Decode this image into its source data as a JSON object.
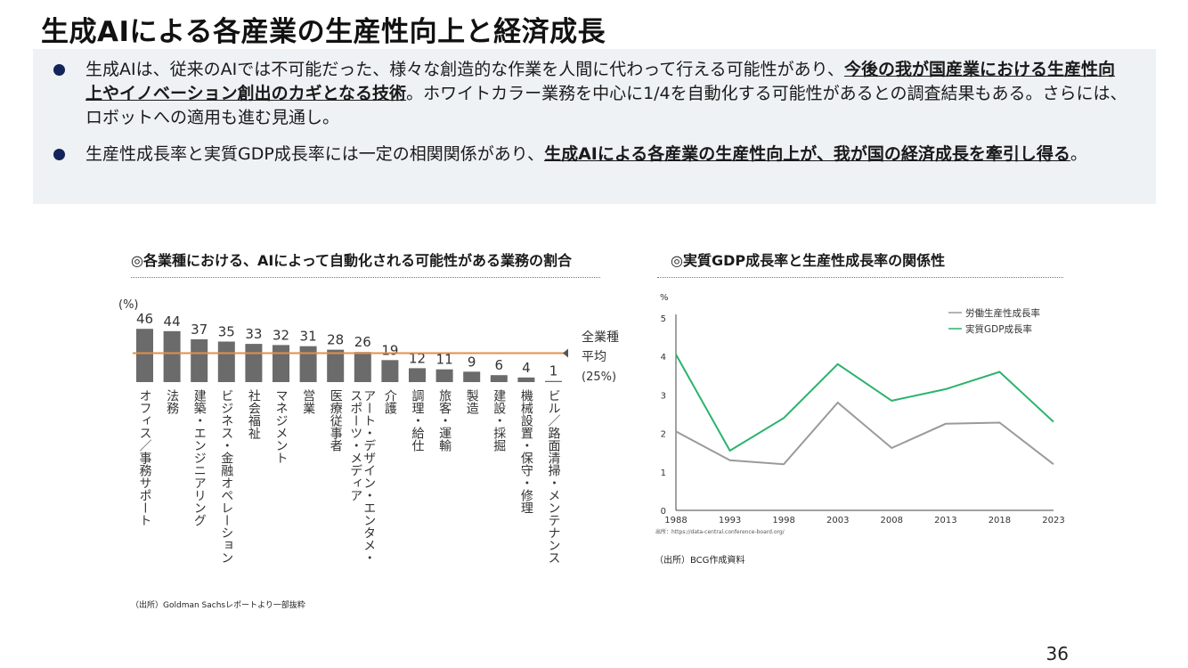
{
  "title": "生成AIによる各産業の生産性向上と経済成長",
  "bullets": [
    {
      "text1": "生成AIは、従来のAIでは不可能だった、様々な創造的な作業を人間に代わって行える可能性があり、",
      "bold": "今後の我が国産業における生産性向上やイノベーション創出のカギとなる技術",
      "text2": "。ホワイトカラー業務を中心に1/4を自動化する可能性があるとの調査結果もある。さらには、ロボットへの適用も進む見通し。"
    },
    {
      "text1": "生産性成長率と実質GDP成長率には一定の相関関係があり、",
      "bold": "生成AIによる各産業の生産性向上が、我が国の経済成長を牽引し得る",
      "text2": "。"
    }
  ],
  "left_panel": {
    "title": "◎各業種における、AIによって自動化される可能性がある業務の割合",
    "source": "（出所）Goldman Sachsレポートより一部抜粋"
  },
  "right_panel": {
    "title": "◎実質GDP成長率と生産性成長率の関係性",
    "inner_source": "出所：https://data-central.conference-board.org/",
    "source": "（出所）BCG作成資料"
  },
  "page_number": "36",
  "chart_data": [
    {
      "type": "bar",
      "unit_label": "(%)",
      "categories": [
        "オフィス／事務サポート",
        "法務",
        "建築・エンジニアリング",
        "ビジネス・金融オペレーション",
        "社会福祉",
        "マネジメント",
        "営業",
        "医療従事者",
        "アート・デザイン・エンターテイメント・スポーツ・メディア",
        "介護",
        "調理・給仕",
        "旅客・運輸",
        "製造",
        "建設・採掘",
        "機械設置・保守・修理",
        "ビル／路面清掃・メンテナンス"
      ],
      "category_lines": [
        [
          "オフィス／事務サポート"
        ],
        [
          "法務"
        ],
        [
          "建築・エンジニアリング"
        ],
        [
          "ビジネス・金融オペレーション"
        ],
        [
          "社会福祉"
        ],
        [
          "マネジメント"
        ],
        [
          "営業"
        ],
        [
          "医療従事者"
        ],
        [
          "アート・デザイン・エンタメ・",
          "スポーツ・メディア"
        ],
        [
          "介護"
        ],
        [
          "調理・給仕"
        ],
        [
          "旅客・運輸"
        ],
        [
          "製造"
        ],
        [
          "建設・採掘"
        ],
        [
          "機械設置・保守・修理"
        ],
        [
          "ビル／路面清掃・メンテナンス"
        ]
      ],
      "values": [
        46,
        44,
        37,
        35,
        33,
        32,
        31,
        28,
        26,
        19,
        12,
        11,
        9,
        6,
        4,
        1
      ],
      "average": {
        "value": 25,
        "label_line1": "全業種",
        "label_line2": "平均",
        "label_value": "(25%)"
      },
      "colors": {
        "bar": "#6b6b6b",
        "average_line": "#e0904a"
      }
    },
    {
      "type": "line",
      "ylabel": "%",
      "x": [
        1988,
        1993,
        1998,
        2003,
        2008,
        2013,
        2018,
        2023
      ],
      "yticks": [
        0,
        1,
        2,
        3,
        4,
        5
      ],
      "ylim": [
        0,
        5
      ],
      "series": [
        {
          "name": "労働生産性成長率",
          "color": "#9a9a9a",
          "values": [
            2.05,
            1.3,
            1.2,
            2.8,
            1.62,
            2.25,
            2.28,
            1.2
          ]
        },
        {
          "name": "実質GDP成長率",
          "color": "#2bb36b",
          "values": [
            4.05,
            1.55,
            2.4,
            3.8,
            2.85,
            3.15,
            3.6,
            2.3
          ]
        }
      ],
      "legend": "top-right",
      "grid": false
    }
  ]
}
